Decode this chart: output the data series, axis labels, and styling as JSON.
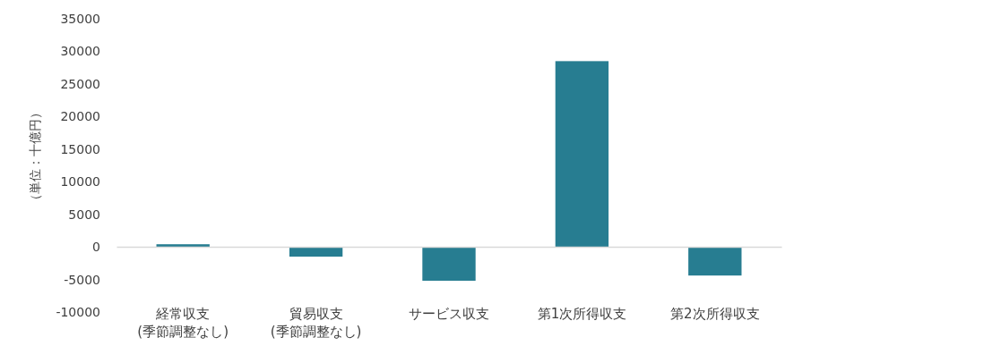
{
  "chart_data": {
    "type": "bar",
    "ylabel": "（単位：十億円）",
    "categories": [
      "経常収支\n(季節調整なし)",
      "貿易収支\n(季節調整なし)",
      "サービス収支",
      "第1次所得収支",
      "第2次所得収支"
    ],
    "values": [
      400,
      -1500,
      -5200,
      28500,
      -4400
    ],
    "color": "#277d91",
    "ylim": [
      -10000,
      35000
    ],
    "yticks": [
      -10000,
      -5000,
      0,
      5000,
      10000,
      15000,
      20000,
      25000,
      30000,
      35000
    ]
  }
}
